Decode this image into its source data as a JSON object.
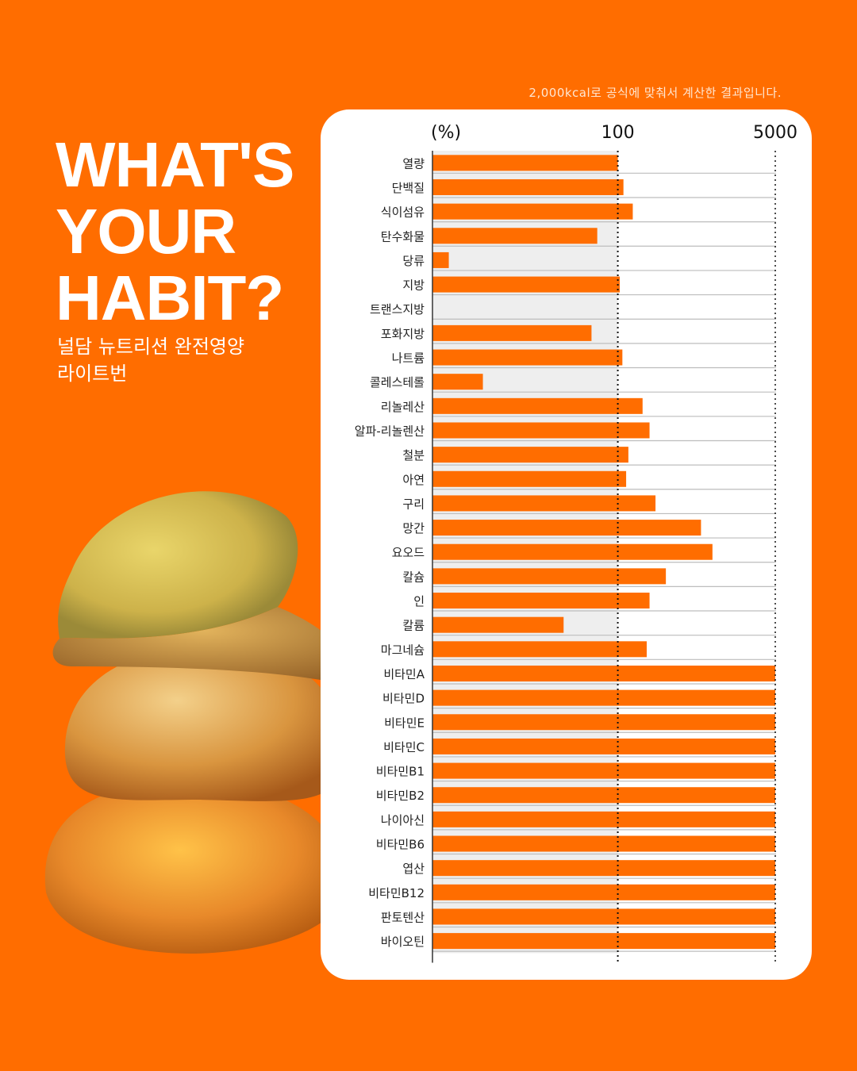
{
  "note": "2,000kcal로 공식에 맞춰서 계산한 결과입니다.",
  "headline": [
    "WHAT'S",
    "YOUR",
    "HABIT?"
  ],
  "subtitle": [
    "널담 뉴트리션 완전영양",
    "라이트번"
  ],
  "chart_data": {
    "type": "bar",
    "orientation": "horizontal",
    "unit_label": "(%)",
    "xticks": [
      "100",
      "5000"
    ],
    "xtick_values": [
      100,
      5000
    ],
    "scale": "log",
    "x_range": [
      1,
      5000
    ],
    "categories": [
      "열량",
      "단백질",
      "식이섬유",
      "탄수화물",
      "당류",
      "지방",
      "트랜스지방",
      "포화지방",
      "나트륨",
      "콜레스테롤",
      "리놀레산",
      "알파-리놀렌산",
      "철분",
      "아연",
      "구리",
      "망간",
      "요오드",
      "칼슘",
      "인",
      "칼륨",
      "마그네슘",
      "비타민A",
      "비타민D",
      "비타민E",
      "비타민C",
      "비타민B1",
      "비타민B2",
      "나이아신",
      "비타민B6",
      "엽산",
      "비타민B12",
      "판토텐산",
      "바이오틴"
    ],
    "values": [
      100,
      115,
      145,
      60,
      1.5,
      105,
      0,
      52,
      112,
      3.5,
      185,
      220,
      130,
      123,
      255,
      790,
      1050,
      330,
      220,
      26,
      205,
      5000,
      5000,
      5000,
      5000,
      5000,
      5000,
      5000,
      5000,
      5000,
      5000,
      5000,
      5000
    ],
    "colors": {
      "bar": "#ff6d00",
      "shade": "#eeeeee",
      "grid": "#bdbdbd",
      "axis": "#333333"
    }
  }
}
